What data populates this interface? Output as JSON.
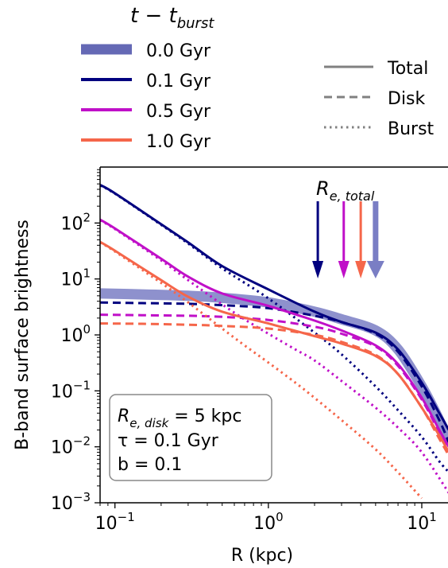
{
  "chart_data": {
    "type": "line",
    "xlabel": "R (kpc)",
    "ylabel": "B-band surface brightness",
    "xscale": "log",
    "yscale": "log",
    "xlim": [
      0.08,
      15
    ],
    "ylim": [
      0.001,
      1000
    ],
    "x_ticks": [
      {
        "value": 0.1,
        "base": "10",
        "exp": "−1"
      },
      {
        "value": 1,
        "base": "10",
        "exp": "0"
      },
      {
        "value": 10,
        "base": "10",
        "exp": "1"
      }
    ],
    "y_ticks": [
      {
        "value": 0.001,
        "base": "10",
        "exp": "−3"
      },
      {
        "value": 0.01,
        "base": "10",
        "exp": "−2"
      },
      {
        "value": 0.1,
        "base": "10",
        "exp": "−1"
      },
      {
        "value": 1,
        "base": "10",
        "exp": "0"
      },
      {
        "value": 10,
        "base": "10",
        "exp": "1"
      },
      {
        "value": 100,
        "base": "10",
        "exp": "2"
      }
    ],
    "legend_time": {
      "title_main": "t − t",
      "title_sub": "burst",
      "placement": "above-left",
      "entries": [
        {
          "label": "0.0 Gyr",
          "color": "#4a4fa8",
          "thick": true
        },
        {
          "label": "0.1 Gyr",
          "color": "#00007f"
        },
        {
          "label": "0.5 Gyr",
          "color": "#c010c8"
        },
        {
          "label": "1.0 Gyr",
          "color": "#f5664a"
        }
      ]
    },
    "legend_style": {
      "placement": "above-right",
      "entries": [
        {
          "label": "Total",
          "dash": "solid"
        },
        {
          "label": "Disk",
          "dash": "dashed"
        },
        {
          "label": "Burst",
          "dash": "dotted"
        }
      ]
    },
    "arrow_label": {
      "main": "R",
      "sub": "e, total"
    },
    "arrows": [
      {
        "x": 2.1,
        "color": "#00007f"
      },
      {
        "x": 3.1,
        "color": "#c010c8"
      },
      {
        "x": 4.0,
        "color": "#f5664a"
      },
      {
        "x": 5.0,
        "color": "#7a7ec4",
        "thick": true
      }
    ],
    "annotation": {
      "line1": {
        "main": "R",
        "sub": "e, disk",
        "rest": " = 5 kpc"
      },
      "line2": "τ = 0.1 Gyr",
      "line3": "b = 0.1"
    },
    "series": [
      {
        "name": "0.0 Gyr",
        "style": "total",
        "color": "#7a7ec4",
        "x": [
          0.08,
          0.15,
          0.3,
          0.5,
          1,
          2,
          3,
          5,
          7,
          10,
          13,
          15
        ],
        "y": [
          5.5,
          5.3,
          5.0,
          4.6,
          3.8,
          2.6,
          1.9,
          1.2,
          0.55,
          0.12,
          0.03,
          0.012
        ]
      },
      {
        "name": "0.0 Gyr",
        "style": "disk",
        "color": "#4a4fa8",
        "x": [
          0.08,
          0.15,
          0.3,
          0.5,
          1,
          2,
          3,
          5,
          7,
          10,
          13,
          15
        ],
        "y": [
          5.5,
          5.3,
          5.0,
          4.6,
          3.8,
          2.6,
          1.9,
          1.2,
          0.55,
          0.12,
          0.03,
          0.012
        ]
      },
      {
        "name": "0.1 Gyr",
        "style": "total",
        "color": "#00007f",
        "x": [
          0.08,
          0.1,
          0.2,
          0.3,
          0.5,
          1,
          2,
          3,
          5,
          7,
          10,
          13,
          15
        ],
        "y": [
          480,
          340,
          95,
          45,
          17,
          6.5,
          2.6,
          1.7,
          1.1,
          0.55,
          0.14,
          0.04,
          0.02
        ]
      },
      {
        "name": "0.1 Gyr",
        "style": "disk",
        "color": "#00007f",
        "x": [
          0.08,
          0.15,
          0.3,
          0.5,
          1,
          2,
          3,
          5,
          7,
          10,
          13,
          15
        ],
        "y": [
          3.8,
          3.7,
          3.6,
          3.4,
          3.0,
          2.2,
          1.7,
          1.05,
          0.5,
          0.12,
          0.03,
          0.012
        ]
      },
      {
        "name": "0.1 Gyr",
        "style": "burst",
        "color": "#00007f",
        "x": [
          0.08,
          0.1,
          0.2,
          0.3,
          0.5,
          1,
          2,
          3,
          5,
          7,
          10,
          13,
          15
        ],
        "y": [
          470,
          335,
          93,
          43,
          15.5,
          4.5,
          1.1,
          0.45,
          0.12,
          0.045,
          0.015,
          0.0055,
          0.0035
        ]
      },
      {
        "name": "0.5 Gyr",
        "style": "total",
        "color": "#c010c8",
        "x": [
          0.08,
          0.1,
          0.2,
          0.3,
          0.5,
          1,
          2,
          3,
          5,
          7,
          10,
          13,
          15
        ],
        "y": [
          115,
          80,
          23,
          11,
          5.5,
          3.3,
          1.8,
          1.2,
          0.65,
          0.3,
          0.075,
          0.02,
          0.01
        ]
      },
      {
        "name": "0.5 Gyr",
        "style": "disk",
        "color": "#c010c8",
        "x": [
          0.08,
          0.15,
          0.3,
          0.5,
          1,
          2,
          3,
          5,
          7,
          10,
          13,
          15
        ],
        "y": [
          2.3,
          2.25,
          2.2,
          2.1,
          1.85,
          1.4,
          1.05,
          0.62,
          0.28,
          0.07,
          0.018,
          0.008
        ]
      },
      {
        "name": "0.5 Gyr",
        "style": "burst",
        "color": "#c010c8",
        "x": [
          0.08,
          0.1,
          0.2,
          0.3,
          0.5,
          0.7,
          1,
          1.5,
          2,
          3,
          5,
          7,
          10,
          15
        ],
        "y": [
          112,
          78,
          21.5,
          9.5,
          3.5,
          1.9,
          1.05,
          0.55,
          0.35,
          0.15,
          0.05,
          0.022,
          0.008,
          0.0015
        ]
      },
      {
        "name": "1.0 Gyr",
        "style": "total",
        "color": "#f5664a",
        "x": [
          0.08,
          0.1,
          0.2,
          0.3,
          0.5,
          1,
          2,
          3,
          5,
          7,
          10,
          13,
          15
        ],
        "y": [
          46,
          32,
          9.5,
          4.8,
          2.6,
          1.6,
          0.95,
          0.7,
          0.42,
          0.2,
          0.05,
          0.016,
          0.008
        ]
      },
      {
        "name": "1.0 Gyr",
        "style": "disk",
        "color": "#f5664a",
        "x": [
          0.08,
          0.15,
          0.3,
          0.5,
          1,
          2,
          3,
          5,
          7,
          10,
          13,
          15
        ],
        "y": [
          1.6,
          1.58,
          1.52,
          1.45,
          1.3,
          1.0,
          0.75,
          0.44,
          0.2,
          0.05,
          0.014,
          0.007
        ]
      },
      {
        "name": "1.0 Gyr",
        "style": "burst",
        "color": "#f5664a",
        "x": [
          0.08,
          0.1,
          0.2,
          0.3,
          0.5,
          0.7,
          1,
          1.5,
          2,
          3,
          5,
          7,
          10
        ],
        "y": [
          45,
          31,
          8.5,
          3.8,
          1.3,
          0.65,
          0.32,
          0.14,
          0.075,
          0.03,
          0.009,
          0.0035,
          0.0012
        ]
      }
    ]
  }
}
